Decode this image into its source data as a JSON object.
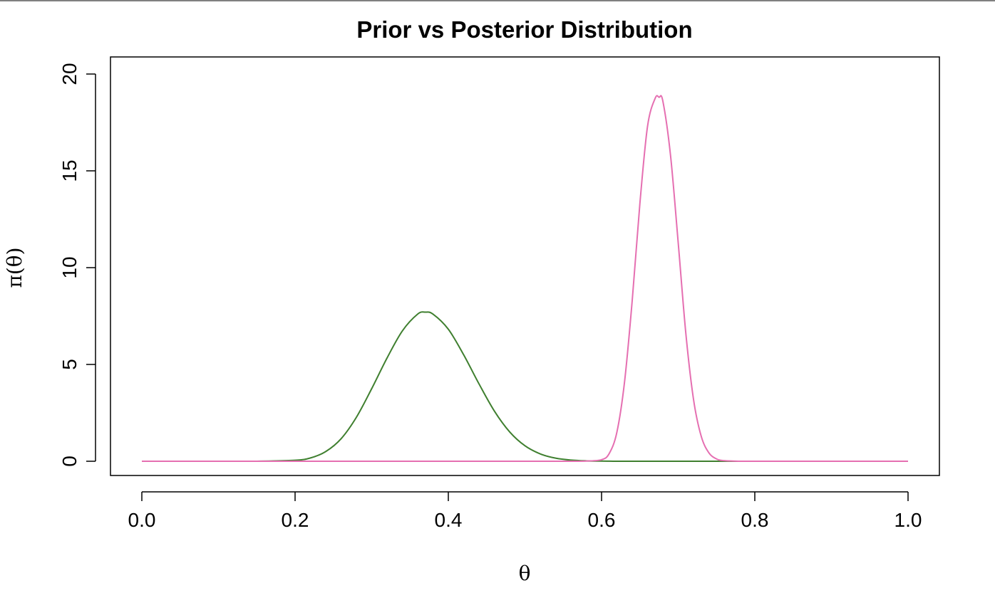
{
  "chart_data": {
    "type": "line",
    "title": "Prior vs Posterior Distribution",
    "xlabel": "θ",
    "ylabel": "π(θ)",
    "xlim": [
      0.0,
      1.0
    ],
    "ylim": [
      0,
      20
    ],
    "x_ticks": [
      "0.0",
      "0.2",
      "0.4",
      "0.6",
      "0.8",
      "1.0"
    ],
    "y_ticks": [
      "0",
      "5",
      "10",
      "15",
      "20"
    ],
    "grid": false,
    "legend": "none",
    "x": [
      0.0,
      0.05,
      0.1,
      0.15,
      0.2,
      0.22,
      0.24,
      0.26,
      0.28,
      0.3,
      0.32,
      0.34,
      0.36,
      0.37,
      0.38,
      0.4,
      0.42,
      0.44,
      0.46,
      0.48,
      0.5,
      0.52,
      0.54,
      0.56,
      0.58,
      0.6,
      0.61,
      0.62,
      0.63,
      0.64,
      0.65,
      0.66,
      0.67,
      0.675,
      0.68,
      0.69,
      0.7,
      0.71,
      0.72,
      0.73,
      0.74,
      0.75,
      0.76,
      0.78,
      0.8,
      0.85,
      0.9,
      0.95,
      1.0
    ],
    "series": [
      {
        "color": "#3f7f2f",
        "values": [
          0,
          0,
          0,
          0.002,
          0.05,
          0.17,
          0.5,
          1.16,
          2.27,
          3.75,
          5.33,
          6.73,
          7.6,
          7.7,
          7.6,
          6.82,
          5.5,
          4.0,
          2.6,
          1.52,
          0.8,
          0.38,
          0.16,
          0.06,
          0.02,
          0.007,
          0.003,
          0.001,
          0,
          0,
          0,
          0,
          0,
          0,
          0,
          0,
          0,
          0,
          0,
          0,
          0,
          0,
          0,
          0,
          0,
          0,
          0,
          0,
          0
        ]
      },
      {
        "color": "#e56fb1",
        "values": [
          0,
          0,
          0,
          0,
          0,
          0,
          0,
          0,
          0,
          0,
          0,
          0,
          0,
          0,
          0,
          0,
          0,
          0,
          0,
          0,
          0,
          0,
          0,
          0,
          0.01,
          0.08,
          0.4,
          1.5,
          4.1,
          8.3,
          13.3,
          17.3,
          18.75,
          18.8,
          18.6,
          15.8,
          11.3,
          6.6,
          3.2,
          1.3,
          0.44,
          0.12,
          0.03,
          0.001,
          0,
          0,
          0,
          0,
          0
        ]
      }
    ]
  }
}
